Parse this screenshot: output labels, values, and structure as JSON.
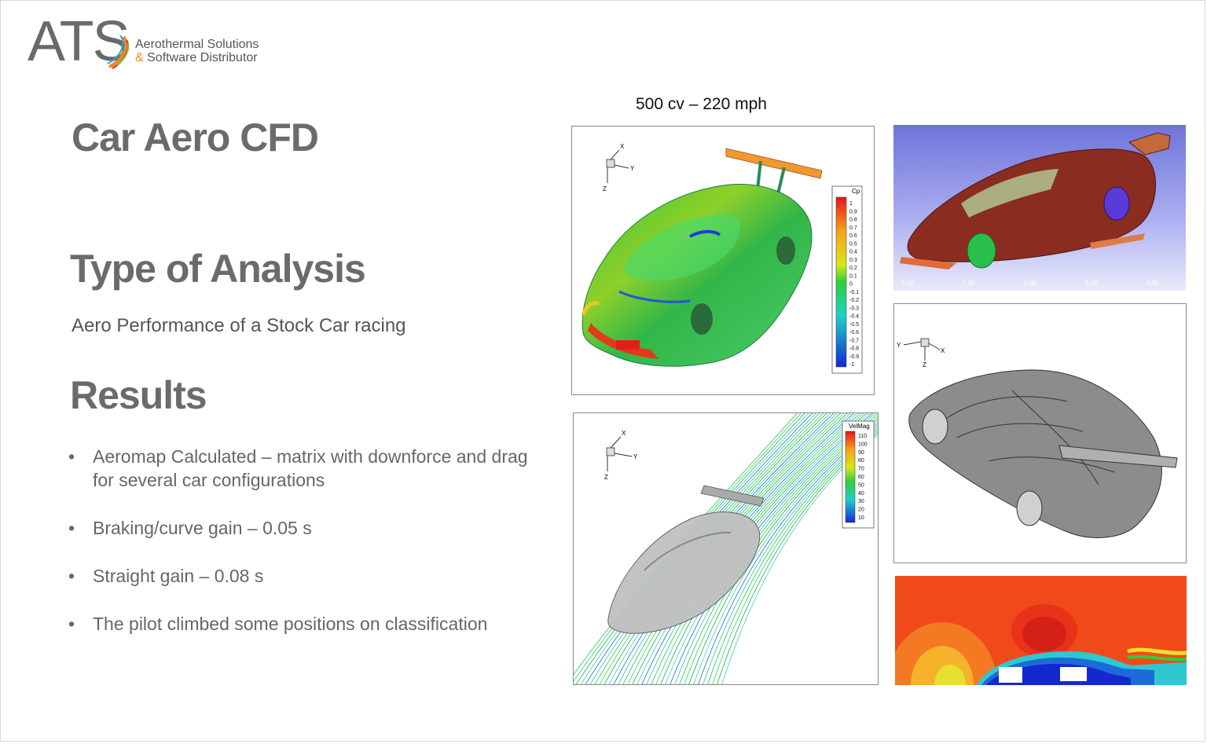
{
  "logo": {
    "brand": "ATS",
    "line1": "Aerothermal Solutions",
    "line2_amp": "&",
    "line2_rest": " Software Distributor"
  },
  "title": "Car Aero CFD",
  "section_analysis": {
    "heading": "Type of Analysis",
    "text": "Aero Performance of a Stock Car racing"
  },
  "section_results": {
    "heading": "Results",
    "bullet_char": "•",
    "bullets": [
      "Aeromap Calculated – matrix with downforce and drag for several car configurations",
      "Braking/curve gain – 0.05 s",
      "Straight gain – 0.08 s",
      "The pilot climbed some positions on classification"
    ]
  },
  "caption": "500 cv – 220 mph",
  "cp_panel": {
    "axes": {
      "x": "X",
      "y": "Y",
      "z": "Z"
    },
    "legend_title": "Cp",
    "legend_labels": [
      "1",
      "0.9",
      "0.8",
      "0.7",
      "0.6",
      "0.5",
      "0.4",
      "0.3",
      "0.2",
      "0.1",
      "0",
      "-0.1",
      "-0.2",
      "-0.3",
      "-0.4",
      "-0.5",
      "-0.6",
      "-0.7",
      "-0.8",
      "-0.9",
      "-1"
    ]
  },
  "mesh_panel": {
    "axis_ticks": [
      "0.00",
      "1.00",
      "2.00",
      "3.00",
      "4.00"
    ]
  },
  "streamline_panel": {
    "axes": {
      "x": "X",
      "y": "Y",
      "z": "Z"
    },
    "legend_title": "VelMag",
    "legend_labels": [
      "110",
      "100",
      "90",
      "80",
      "70",
      "60",
      "50",
      "40",
      "30",
      "20",
      "10"
    ]
  },
  "surface_panel": {
    "axes": {
      "x": "X",
      "y": "Y",
      "z": "Z"
    }
  },
  "colors": {
    "heading": "#6b6b6b",
    "logo_gray": "#6a6a6a",
    "logo_orange": "#f08a1c",
    "contour_red": "#f04a1a",
    "mesh_body": "#8a2c20"
  }
}
